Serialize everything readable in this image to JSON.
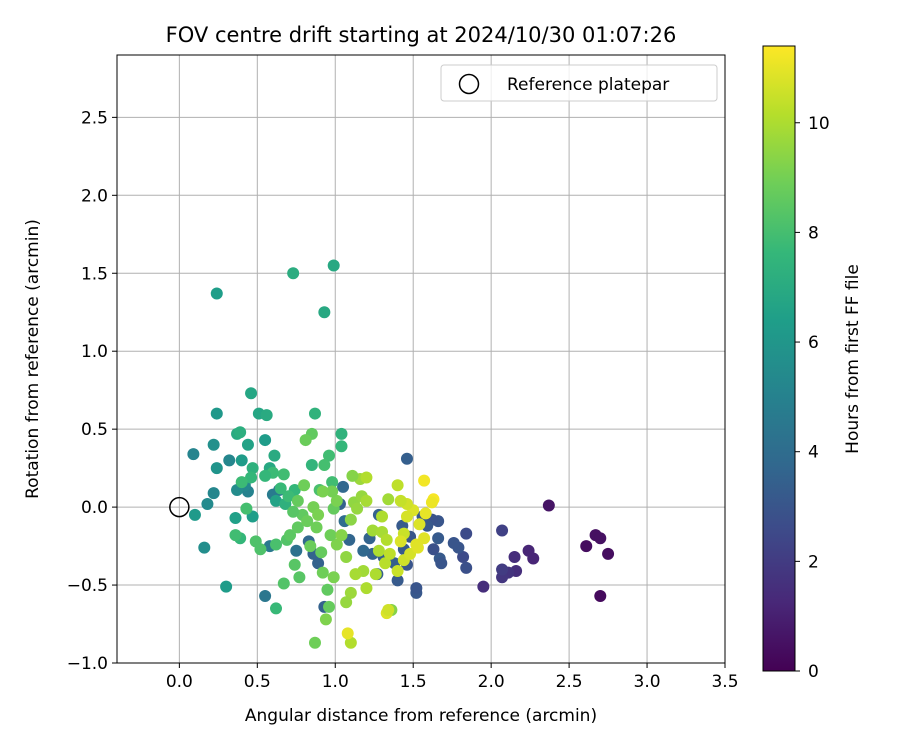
{
  "chart_data": {
    "type": "scatter",
    "title": "FOV centre drift starting at 2024/10/30 01:07:26",
    "xlabel": "Angular distance from reference (arcmin)",
    "ylabel": "Rotation from reference (arcmin)",
    "xlim": [
      -0.4,
      3.5
    ],
    "ylim": [
      -1.0,
      2.9
    ],
    "xticks": [
      "0.0",
      "0.5",
      "1.0",
      "1.5",
      "2.0",
      "2.5",
      "3.0",
      "3.5"
    ],
    "yticks": [
      "−1.0",
      "−0.5",
      "0.0",
      "0.5",
      "1.0",
      "1.5",
      "2.0",
      "2.5"
    ],
    "grid": true,
    "legend": {
      "placement": "top-right",
      "entries": [
        "Reference platepar"
      ]
    },
    "reference_point": {
      "x": 0.0,
      "y": 0.0,
      "marker": "open-circle",
      "label": "Reference platepar"
    },
    "colorbar": {
      "label": "Hours from first FF file",
      "colormap": "viridis",
      "range": [
        0,
        11.4
      ],
      "ticks": [
        "0",
        "2",
        "4",
        "6",
        "8",
        "10"
      ]
    },
    "series_points_note_columns": [
      "x",
      "y",
      "hours"
    ],
    "points": [
      [
        2.37,
        0.01,
        0.6
      ],
      [
        2.7,
        -0.57,
        0.3
      ],
      [
        2.75,
        -0.3,
        0.4
      ],
      [
        2.67,
        -0.18,
        0.5
      ],
      [
        2.7,
        -0.2,
        0.5
      ],
      [
        2.61,
        -0.25,
        0.4
      ],
      [
        2.24,
        -0.28,
        1.2
      ],
      [
        2.27,
        -0.33,
        1.2
      ],
      [
        2.15,
        -0.32,
        1.5
      ],
      [
        2.16,
        -0.41,
        1.5
      ],
      [
        2.11,
        -0.42,
        1.7
      ],
      [
        2.07,
        -0.45,
        1.8
      ],
      [
        2.07,
        -0.4,
        2.0
      ],
      [
        1.95,
        -0.51,
        1.5
      ],
      [
        2.07,
        -0.15,
        2.2
      ],
      [
        1.84,
        -0.17,
        2.6
      ],
      [
        1.82,
        -0.32,
        2.6
      ],
      [
        1.84,
        -0.39,
        2.8
      ],
      [
        1.79,
        -0.26,
        3.0
      ],
      [
        1.76,
        -0.23,
        3.0
      ],
      [
        1.67,
        -0.33,
        3.2
      ],
      [
        1.68,
        -0.36,
        3.0
      ],
      [
        1.66,
        -0.2,
        3.2
      ],
      [
        1.63,
        -0.27,
        2.8
      ],
      [
        1.66,
        -0.09,
        3.0
      ],
      [
        1.62,
        -0.08,
        2.9
      ],
      [
        1.59,
        -0.12,
        3.1
      ],
      [
        1.56,
        -0.06,
        3.2
      ],
      [
        1.52,
        -0.55,
        3.1
      ],
      [
        1.52,
        -0.52,
        3.0
      ],
      [
        1.46,
        -0.37,
        3.0
      ],
      [
        1.48,
        -0.19,
        3.0
      ],
      [
        1.44,
        -0.27,
        3.2
      ],
      [
        1.43,
        -0.12,
        3.2
      ],
      [
        1.46,
        0.31,
        3.4
      ],
      [
        1.38,
        -0.36,
        3.4
      ],
      [
        1.27,
        -0.43,
        3.4
      ],
      [
        1.31,
        -0.32,
        3.3
      ],
      [
        1.36,
        -0.66,
        9.3
      ],
      [
        1.4,
        -0.47,
        3.2
      ],
      [
        1.28,
        -0.05,
        3.5
      ],
      [
        1.22,
        -0.2,
        3.6
      ],
      [
        1.24,
        -0.3,
        3.5
      ],
      [
        1.18,
        -0.28,
        3.8
      ],
      [
        1.09,
        -0.21,
        3.7
      ],
      [
        1.06,
        -0.09,
        4.0
      ],
      [
        1.05,
        0.13,
        3.8
      ],
      [
        1.03,
        0.02,
        3.5
      ],
      [
        0.93,
        -0.64,
        3.5
      ],
      [
        0.89,
        -0.36,
        3.5
      ],
      [
        0.86,
        -0.3,
        3.6
      ],
      [
        0.83,
        -0.22,
        3.8
      ],
      [
        0.75,
        -0.28,
        4.2
      ],
      [
        0.64,
        0.11,
        4.5
      ],
      [
        0.6,
        0.08,
        4.7
      ],
      [
        0.58,
        -0.25,
        4.6
      ],
      [
        0.55,
        -0.57,
        4.5
      ],
      [
        0.44,
        0.1,
        5.0
      ],
      [
        0.42,
        0.14,
        5.3
      ],
      [
        0.37,
        0.11,
        5.5
      ],
      [
        0.32,
        0.3,
        5.2
      ],
      [
        0.22,
        0.09,
        5.2
      ],
      [
        0.18,
        0.02,
        5.4
      ],
      [
        0.09,
        0.34,
        5.1
      ],
      [
        0.16,
        -0.26,
        5.6
      ],
      [
        0.1,
        -0.05,
        6.2
      ],
      [
        0.3,
        -0.51,
        6.3
      ],
      [
        0.36,
        -0.07,
        6.5
      ],
      [
        0.47,
        -0.06,
        6.4
      ],
      [
        0.24,
        0.6,
        6.1
      ],
      [
        0.24,
        0.25,
        5.9
      ],
      [
        0.22,
        0.4,
        5.7
      ],
      [
        0.24,
        1.37,
        6.4
      ],
      [
        0.4,
        0.3,
        6.3
      ],
      [
        0.44,
        0.4,
        6.6
      ],
      [
        0.37,
        0.47,
        7.0
      ],
      [
        0.39,
        0.48,
        7.2
      ],
      [
        0.46,
        0.73,
        6.8
      ],
      [
        0.51,
        0.6,
        6.8
      ],
      [
        0.55,
        0.43,
        6.3
      ],
      [
        0.56,
        0.59,
        7.0
      ],
      [
        0.58,
        0.25,
        6.9
      ],
      [
        0.61,
        0.33,
        7.0
      ],
      [
        0.62,
        0.04,
        6.6
      ],
      [
        0.68,
        0.02,
        7.3
      ],
      [
        0.73,
        1.5,
        7.1
      ],
      [
        0.93,
        1.25,
        6.9
      ],
      [
        0.99,
        1.55,
        6.9
      ],
      [
        0.87,
        0.6,
        7.4
      ],
      [
        0.85,
        0.27,
        7.5
      ],
      [
        0.85,
        0.47,
        8.6
      ],
      [
        0.81,
        0.43,
        8.8
      ],
      [
        1.04,
        0.47,
        7.4
      ],
      [
        1.04,
        0.39,
        7.6
      ],
      [
        0.96,
        0.33,
        7.9
      ],
      [
        0.93,
        0.27,
        8.0
      ],
      [
        0.98,
        0.16,
        7.9
      ],
      [
        0.9,
        0.11,
        8.1
      ],
      [
        0.74,
        0.11,
        7.6
      ],
      [
        0.7,
        0.07,
        7.8
      ],
      [
        0.65,
        0.12,
        7.7
      ],
      [
        0.67,
        0.21,
        7.9
      ],
      [
        0.6,
        0.22,
        7.8
      ],
      [
        0.55,
        0.2,
        7.6
      ],
      [
        0.47,
        0.25,
        7.3
      ],
      [
        0.46,
        0.19,
        7.6
      ],
      [
        0.4,
        0.16,
        7.8
      ],
      [
        0.43,
        -0.01,
        8.0
      ],
      [
        0.39,
        -0.2,
        7.6
      ],
      [
        0.36,
        -0.18,
        7.9
      ],
      [
        0.49,
        -0.22,
        8.2
      ],
      [
        0.52,
        -0.27,
        8.2
      ],
      [
        0.62,
        -0.24,
        8.1
      ],
      [
        0.62,
        -0.65,
        7.7
      ],
      [
        0.67,
        -0.49,
        8.3
      ],
      [
        0.74,
        -0.37,
        8.4
      ],
      [
        0.77,
        -0.45,
        8.4
      ],
      [
        0.69,
        -0.21,
        8.3
      ],
      [
        0.71,
        -0.18,
        8.5
      ],
      [
        0.76,
        -0.13,
        8.6
      ],
      [
        0.79,
        -0.05,
        8.6
      ],
      [
        0.82,
        -0.09,
        8.8
      ],
      [
        0.88,
        -0.13,
        8.9
      ],
      [
        0.84,
        -0.25,
        8.8
      ],
      [
        0.91,
        -0.29,
        8.7
      ],
      [
        0.92,
        -0.42,
        8.9
      ],
      [
        0.95,
        -0.53,
        8.6
      ],
      [
        0.96,
        -0.64,
        8.7
      ],
      [
        0.87,
        -0.87,
        8.9
      ],
      [
        0.94,
        -0.72,
        9.2
      ],
      [
        0.99,
        -0.45,
        9.1
      ],
      [
        1.01,
        -0.24,
        9.2
      ],
      [
        0.97,
        -0.18,
        8.9
      ],
      [
        0.99,
        -0.01,
        8.7
      ],
      [
        1.01,
        0.04,
        9.1
      ],
      [
        0.98,
        0.1,
        9.0
      ],
      [
        0.92,
        0.1,
        9.1
      ],
      [
        0.8,
        0.14,
        8.9
      ],
      [
        0.73,
        -0.03,
        8.4
      ],
      [
        0.76,
        0.04,
        8.7
      ],
      [
        0.86,
        0.0,
        9.0
      ],
      [
        0.89,
        -0.05,
        9.1
      ],
      [
        1.04,
        -0.18,
        9.3
      ],
      [
        1.07,
        -0.32,
        9.5
      ],
      [
        1.1,
        -0.08,
        9.4
      ],
      [
        1.12,
        0.03,
        9.5
      ],
      [
        1.14,
        -0.01,
        9.6
      ],
      [
        1.17,
        0.07,
        9.6
      ],
      [
        1.16,
        0.18,
        9.7
      ],
      [
        1.2,
        0.19,
        10.1
      ],
      [
        1.11,
        0.2,
        9.3
      ],
      [
        1.2,
        0.04,
        9.9
      ],
      [
        1.24,
        -0.15,
        9.8
      ],
      [
        1.3,
        -0.16,
        9.9
      ],
      [
        1.33,
        -0.21,
        10.1
      ],
      [
        1.28,
        -0.28,
        10.0
      ],
      [
        1.32,
        -0.36,
        10.2
      ],
      [
        1.35,
        -0.3,
        10.3
      ],
      [
        1.26,
        -0.43,
        10.0
      ],
      [
        1.18,
        -0.41,
        9.8
      ],
      [
        1.2,
        -0.52,
        10.0
      ],
      [
        1.13,
        -0.43,
        9.9
      ],
      [
        1.1,
        -0.55,
        9.7
      ],
      [
        1.07,
        -0.61,
        9.6
      ],
      [
        1.1,
        -0.87,
        10.1
      ],
      [
        1.08,
        -0.81,
        11.0
      ],
      [
        1.33,
        -0.68,
        10.8
      ],
      [
        1.34,
        -0.66,
        10.6
      ],
      [
        1.4,
        -0.41,
        10.5
      ],
      [
        1.44,
        -0.34,
        10.6
      ],
      [
        1.48,
        -0.3,
        10.7
      ],
      [
        1.52,
        -0.24,
        10.9
      ],
      [
        1.54,
        -0.11,
        10.8
      ],
      [
        1.5,
        -0.02,
        10.8
      ],
      [
        1.46,
        0.02,
        10.6
      ],
      [
        1.42,
        0.04,
        10.4
      ],
      [
        1.4,
        0.14,
        10.3
      ],
      [
        1.34,
        0.05,
        9.8
      ],
      [
        1.3,
        -0.06,
        10.0
      ],
      [
        1.44,
        -0.17,
        10.5
      ],
      [
        1.46,
        -0.06,
        10.7
      ],
      [
        1.42,
        -0.22,
        10.8
      ],
      [
        1.57,
        0.17,
        11.2
      ],
      [
        1.58,
        -0.04,
        11.0
      ],
      [
        1.63,
        0.05,
        11.3
      ],
      [
        1.62,
        0.03,
        11.1
      ],
      [
        1.57,
        -0.2,
        10.9
      ],
      [
        1.53,
        -0.26,
        10.9
      ]
    ]
  }
}
